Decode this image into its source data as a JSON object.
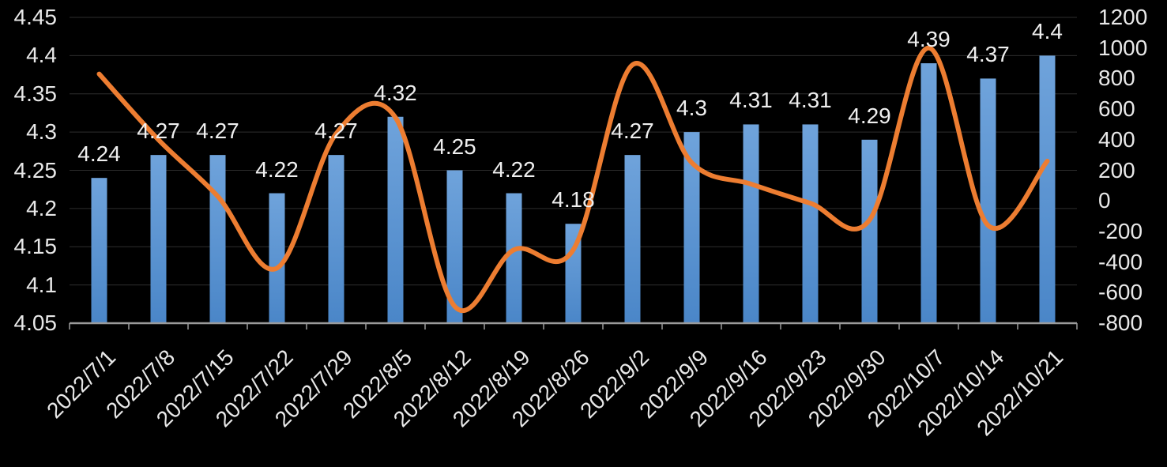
{
  "chart_data": {
    "type": "bar",
    "combo_with_line": true,
    "title": "",
    "legend": "none",
    "grid": true,
    "background": "#000000",
    "categories": [
      "2022/7/1",
      "2022/7/8",
      "2022/7/15",
      "2022/7/22",
      "2022/7/29",
      "2022/8/5",
      "2022/8/12",
      "2022/8/19",
      "2022/8/26",
      "2022/9/2",
      "2022/9/9",
      "2022/9/16",
      "2022/9/23",
      "2022/9/30",
      "2022/10/7",
      "2022/10/14",
      "2022/10/21"
    ],
    "series": [
      {
        "name": "bar-series",
        "type": "bar",
        "axis": "left",
        "color_top": "#6fa3db",
        "color_bottom": "#4a86c8",
        "values": [
          4.24,
          4.27,
          4.27,
          4.22,
          4.27,
          4.32,
          4.25,
          4.22,
          4.18,
          4.27,
          4.3,
          4.31,
          4.31,
          4.29,
          4.39,
          4.37,
          4.4
        ],
        "labels": [
          "4.24",
          "4.27",
          "4.27",
          "4.22",
          "4.27",
          "4.32",
          "4.25",
          "4.22",
          "4.18",
          "4.27",
          "4.3",
          "4.31",
          "4.31",
          "4.29",
          "4.39",
          "4.37",
          "4.4"
        ]
      },
      {
        "name": "line-series",
        "type": "line",
        "axis": "right",
        "smooth": true,
        "color": "#ED7D31",
        "values": [
          830,
          400,
          30,
          -440,
          440,
          545,
          -690,
          -320,
          -320,
          890,
          250,
          110,
          -15,
          -125,
          1000,
          -160,
          260
        ]
      }
    ],
    "left_axis": {
      "ticks": [
        "4.45",
        "4.4",
        "4.35",
        "4.3",
        "4.25",
        "4.2",
        "4.15",
        "4.1",
        "4.05"
      ],
      "range": [
        4.05,
        4.45
      ]
    },
    "right_axis": {
      "ticks": [
        "1200",
        "1000",
        "800",
        "600",
        "400",
        "200",
        "0",
        "-200",
        "-400",
        "-600",
        "-800"
      ],
      "range": [
        -800,
        1200
      ]
    },
    "colors": {
      "gridline": "#2e2e2e",
      "axis_line": "#9b9b9b",
      "tick_text": "#e8e8e8"
    }
  }
}
